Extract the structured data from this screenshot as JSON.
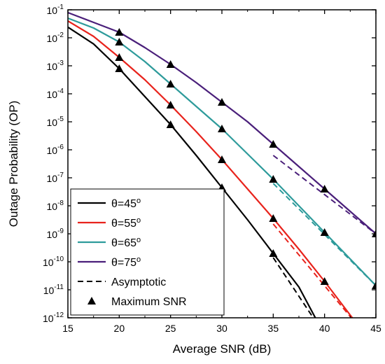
{
  "chart_data": {
    "type": "line",
    "xlabel": "Average SNR (dB)",
    "ylabel": "Outage Probability (OP)",
    "xlim": [
      15,
      45
    ],
    "ylim_log10": [
      -12,
      -1
    ],
    "yscale": "log",
    "x_ticks": [
      "15",
      "20",
      "25",
      "30",
      "35",
      "40",
      "45"
    ],
    "y_tick_base": "10",
    "y_tick_exponents": [
      "-1",
      "-2",
      "-3",
      "-4",
      "-5",
      "-6",
      "-7",
      "-8",
      "-9",
      "-10",
      "-11",
      "-12"
    ],
    "grid": false,
    "legend_position": "bottom-left",
    "series": [
      {
        "name": "θ=45°",
        "legend_label": "θ=45",
        "legend_sup": "o",
        "color": "#000000",
        "x": [
          15,
          17.5,
          20,
          22.5,
          25,
          27.5,
          30,
          32.5,
          35,
          37.5,
          39.1
        ],
        "log10_y": [
          -1.62,
          -2.22,
          -3.1,
          -4.1,
          -5.1,
          -6.2,
          -7.35,
          -8.5,
          -9.7,
          -10.9,
          -12
        ],
        "values": [
          0.024,
          0.006,
          0.00079,
          7.9e-05,
          7.9e-06,
          6.3e-07,
          4.5e-08,
          3.2e-09,
          2e-10,
          1.3e-11,
          1e-12
        ]
      },
      {
        "name": "θ=55°",
        "legend_label": "θ=55",
        "legend_sup": "o",
        "color": "#e8231c",
        "x": [
          15,
          17.5,
          20,
          22.5,
          25,
          27.5,
          30,
          32.5,
          35,
          37.5,
          40,
          42.7
        ],
        "log10_y": [
          -1.4,
          -1.95,
          -2.7,
          -3.5,
          -4.4,
          -5.35,
          -6.35,
          -7.4,
          -8.45,
          -9.55,
          -10.7,
          -12
        ],
        "values": [
          0.04,
          0.011,
          0.002,
          0.00032,
          4e-05,
          4.5e-06,
          4.5e-07,
          4e-08,
          3.5e-09,
          2.8e-10,
          2e-11,
          1e-12
        ]
      },
      {
        "name": "θ=65°",
        "legend_label": "θ=65",
        "legend_sup": "o",
        "color": "#2e9b9b",
        "x": [
          15,
          17.5,
          20,
          22.5,
          25,
          27.5,
          30,
          32.5,
          35,
          37.5,
          40,
          42.5,
          45
        ],
        "log10_y": [
          -1.3,
          -1.65,
          -2.15,
          -2.85,
          -3.65,
          -4.45,
          -5.25,
          -6.15,
          -7.05,
          -8.0,
          -8.95,
          -9.9,
          -10.85
        ],
        "values": [
          0.05,
          0.022,
          0.0071,
          0.0014,
          0.00022,
          3.5e-05,
          5.6e-06,
          7.1e-07,
          8.9e-08,
          1e-08,
          1.1e-09,
          1.3e-10,
          1.4e-11
        ]
      },
      {
        "name": "θ=75°",
        "legend_label": "θ=75",
        "legend_sup": "o",
        "color": "#4a1f7a",
        "x": [
          15,
          17.5,
          20,
          22.5,
          25,
          27.5,
          30,
          32.5,
          35,
          37.5,
          40,
          42.5,
          45
        ],
        "log10_y": [
          -1.1,
          -1.45,
          -1.8,
          -2.35,
          -2.95,
          -3.6,
          -4.3,
          -5.0,
          -5.8,
          -6.6,
          -7.4,
          -8.2,
          -9.0
        ],
        "values": [
          0.079,
          0.035,
          0.016,
          0.0045,
          0.0011,
          0.00025,
          5e-05,
          1e-05,
          1.6e-06,
          2.5e-07,
          4e-08,
          6.3e-09,
          1e-09
        ]
      }
    ],
    "asymptotic": {
      "name": "Asymptotic",
      "style": "dashed",
      "lines": [
        {
          "color": "#000000",
          "x": [
            35,
            38.9
          ],
          "log10_y": [
            -9.85,
            -12
          ]
        },
        {
          "color": "#e8231c",
          "x": [
            35,
            42.6
          ],
          "log10_y": [
            -8.65,
            -12
          ]
        },
        {
          "color": "#2e9b9b",
          "x": [
            35,
            45
          ],
          "log10_y": [
            -7.2,
            -10.85
          ]
        },
        {
          "color": "#4a1f7a",
          "x": [
            35,
            45
          ],
          "log10_y": [
            -6.2,
            -9.0
          ]
        }
      ]
    },
    "markers": {
      "name": "Maximum SNR",
      "shape": "triangle",
      "color": "#000000",
      "x": [
        20,
        25,
        30,
        35,
        40,
        45
      ]
    }
  }
}
